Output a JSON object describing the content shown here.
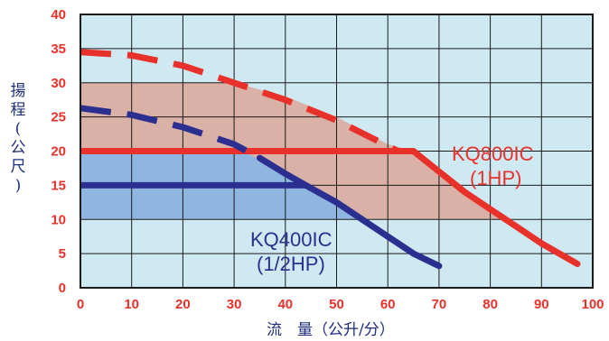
{
  "chart_data": {
    "type": "line",
    "title": "",
    "xlabel": "流　量（公升/分）",
    "ylabel": "揚程(公尺)",
    "xlim": [
      0,
      100
    ],
    "ylim": [
      0,
      40
    ],
    "x_ticks": [
      "0",
      "10",
      "20",
      "30",
      "40",
      "50",
      "60",
      "70",
      "80",
      "90",
      "100"
    ],
    "y_ticks": [
      "0",
      "5",
      "10",
      "15",
      "20",
      "25",
      "30",
      "35",
      "40"
    ],
    "grid": true,
    "colors": {
      "background": "#cfe9f3",
      "kq800_region": "#d9b1a6",
      "kq400_region": "#8fb6e0",
      "kq800_line": "#e8312a",
      "kq400_line": "#2b2f8f",
      "tick_text": "#e8312a",
      "axis_title": "#1c2c7a"
    },
    "series": [
      {
        "name": "KQ800IC (1HP)",
        "label_line1": "KQ800IC",
        "label_line2": "(1HP)",
        "label_color": "#e8312a",
        "color": "#e8312a",
        "open_curve": [
          [
            0,
            34.5
          ],
          [
            10,
            34
          ],
          [
            20,
            32.5
          ],
          [
            30,
            30
          ],
          [
            40,
            27.5
          ],
          [
            50,
            24.5
          ],
          [
            62,
            20
          ]
        ],
        "limit_line": [
          [
            0,
            20
          ],
          [
            65,
            20
          ]
        ],
        "curve": [
          [
            65,
            20
          ],
          [
            70,
            17
          ],
          [
            75,
            14
          ],
          [
            80,
            11.5
          ],
          [
            85,
            9
          ],
          [
            90,
            6.5
          ],
          [
            97,
            3.5
          ]
        ],
        "operating_region": [
          [
            0,
            10
          ],
          [
            0,
            30
          ],
          [
            20,
            30
          ],
          [
            30,
            30
          ],
          [
            40,
            28
          ],
          [
            50,
            25
          ],
          [
            60,
            21
          ],
          [
            65,
            20
          ],
          [
            70,
            17
          ],
          [
            75,
            14
          ],
          [
            80,
            11.5
          ],
          [
            82,
            10
          ]
        ]
      },
      {
        "name": "KQ400IC (1/2HP)",
        "label_line1": "KQ400IC",
        "label_line2": "(1/2HP)",
        "label_color": "#2b2f8f",
        "color": "#2b2f8f",
        "open_curve": [
          [
            0,
            26.3
          ],
          [
            10,
            25.3
          ],
          [
            20,
            23.5
          ],
          [
            30,
            21
          ],
          [
            35,
            19
          ]
        ],
        "limit_line": [
          [
            0,
            15
          ],
          [
            44,
            15
          ]
        ],
        "curve": [
          [
            35,
            19
          ],
          [
            40,
            16.7
          ],
          [
            44,
            15
          ],
          [
            50,
            12.5
          ],
          [
            55,
            10
          ],
          [
            60,
            7.5
          ],
          [
            65,
            5
          ],
          [
            70,
            3.2
          ]
        ],
        "operating_region": [
          [
            0,
            10
          ],
          [
            0,
            20
          ],
          [
            30,
            20
          ],
          [
            33,
            19.5
          ],
          [
            40,
            16.7
          ],
          [
            44,
            15
          ],
          [
            50,
            12.5
          ],
          [
            55,
            10
          ]
        ]
      }
    ]
  }
}
